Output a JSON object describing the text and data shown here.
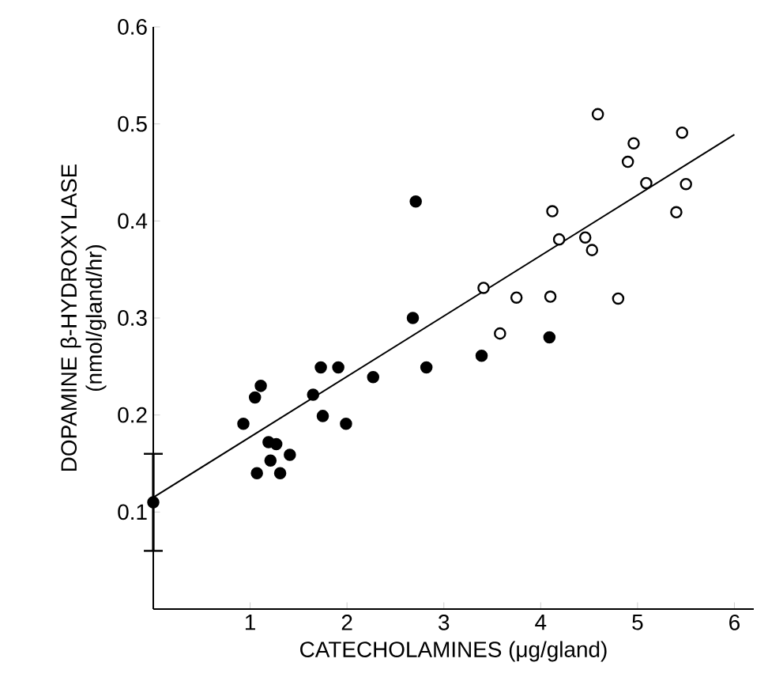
{
  "chart_data": {
    "type": "scatter",
    "xlabel": "CATECHOLAMINES (μg/gland)",
    "ylabel": "DOPAMINE β-HYDROXYLASE\n(nmol/gland/hr)",
    "xlim": [
      0,
      6.2
    ],
    "ylim": [
      0,
      0.6
    ],
    "xticks": [
      1,
      2,
      3,
      4,
      5,
      6
    ],
    "yticks": [
      0.1,
      0.2,
      0.3,
      0.4,
      0.5,
      0.6
    ],
    "grid": false,
    "marker": "circle",
    "series": [
      {
        "color": "#000000",
        "x": [
          0.93,
          1.05,
          1.11,
          1.19,
          1.27,
          1.41,
          1.07,
          1.31,
          1.21,
          1.65,
          1.73,
          1.91,
          1.75,
          1.99,
          2.27,
          2.71,
          2.68,
          2.82,
          3.39,
          4.09
        ],
        "values": [
          0.191,
          0.218,
          0.23,
          0.172,
          0.17,
          0.159,
          0.14,
          0.14,
          0.153,
          0.221,
          0.249,
          0.249,
          0.199,
          0.191,
          0.239,
          0.42,
          0.3,
          0.249,
          0.261,
          0.28
        ]
      },
      {
        "color": "#ffffff",
        "x": [
          3.41,
          3.58,
          3.75,
          4.1,
          4.8,
          4.12,
          4.19,
          4.46,
          4.53,
          4.59,
          4.9,
          4.96,
          5.09,
          5.46,
          5.5,
          5.4
        ],
        "values": [
          0.331,
          0.284,
          0.321,
          0.322,
          0.32,
          0.41,
          0.381,
          0.383,
          0.37,
          0.51,
          0.461,
          0.48,
          0.439,
          0.491,
          0.438,
          0.409
        ]
      },
      {
        "type": "line",
        "color": "#000000",
        "marker": "none",
        "x": [
          0,
          6
        ],
        "values": [
          0.115,
          0.489
        ]
      },
      {
        "type": "scatter",
        "color": "#000000",
        "x": [
          0
        ],
        "values": [
          0.11
        ],
        "errors": [
          [
            0.06,
            0.16
          ]
        ]
      }
    ]
  }
}
